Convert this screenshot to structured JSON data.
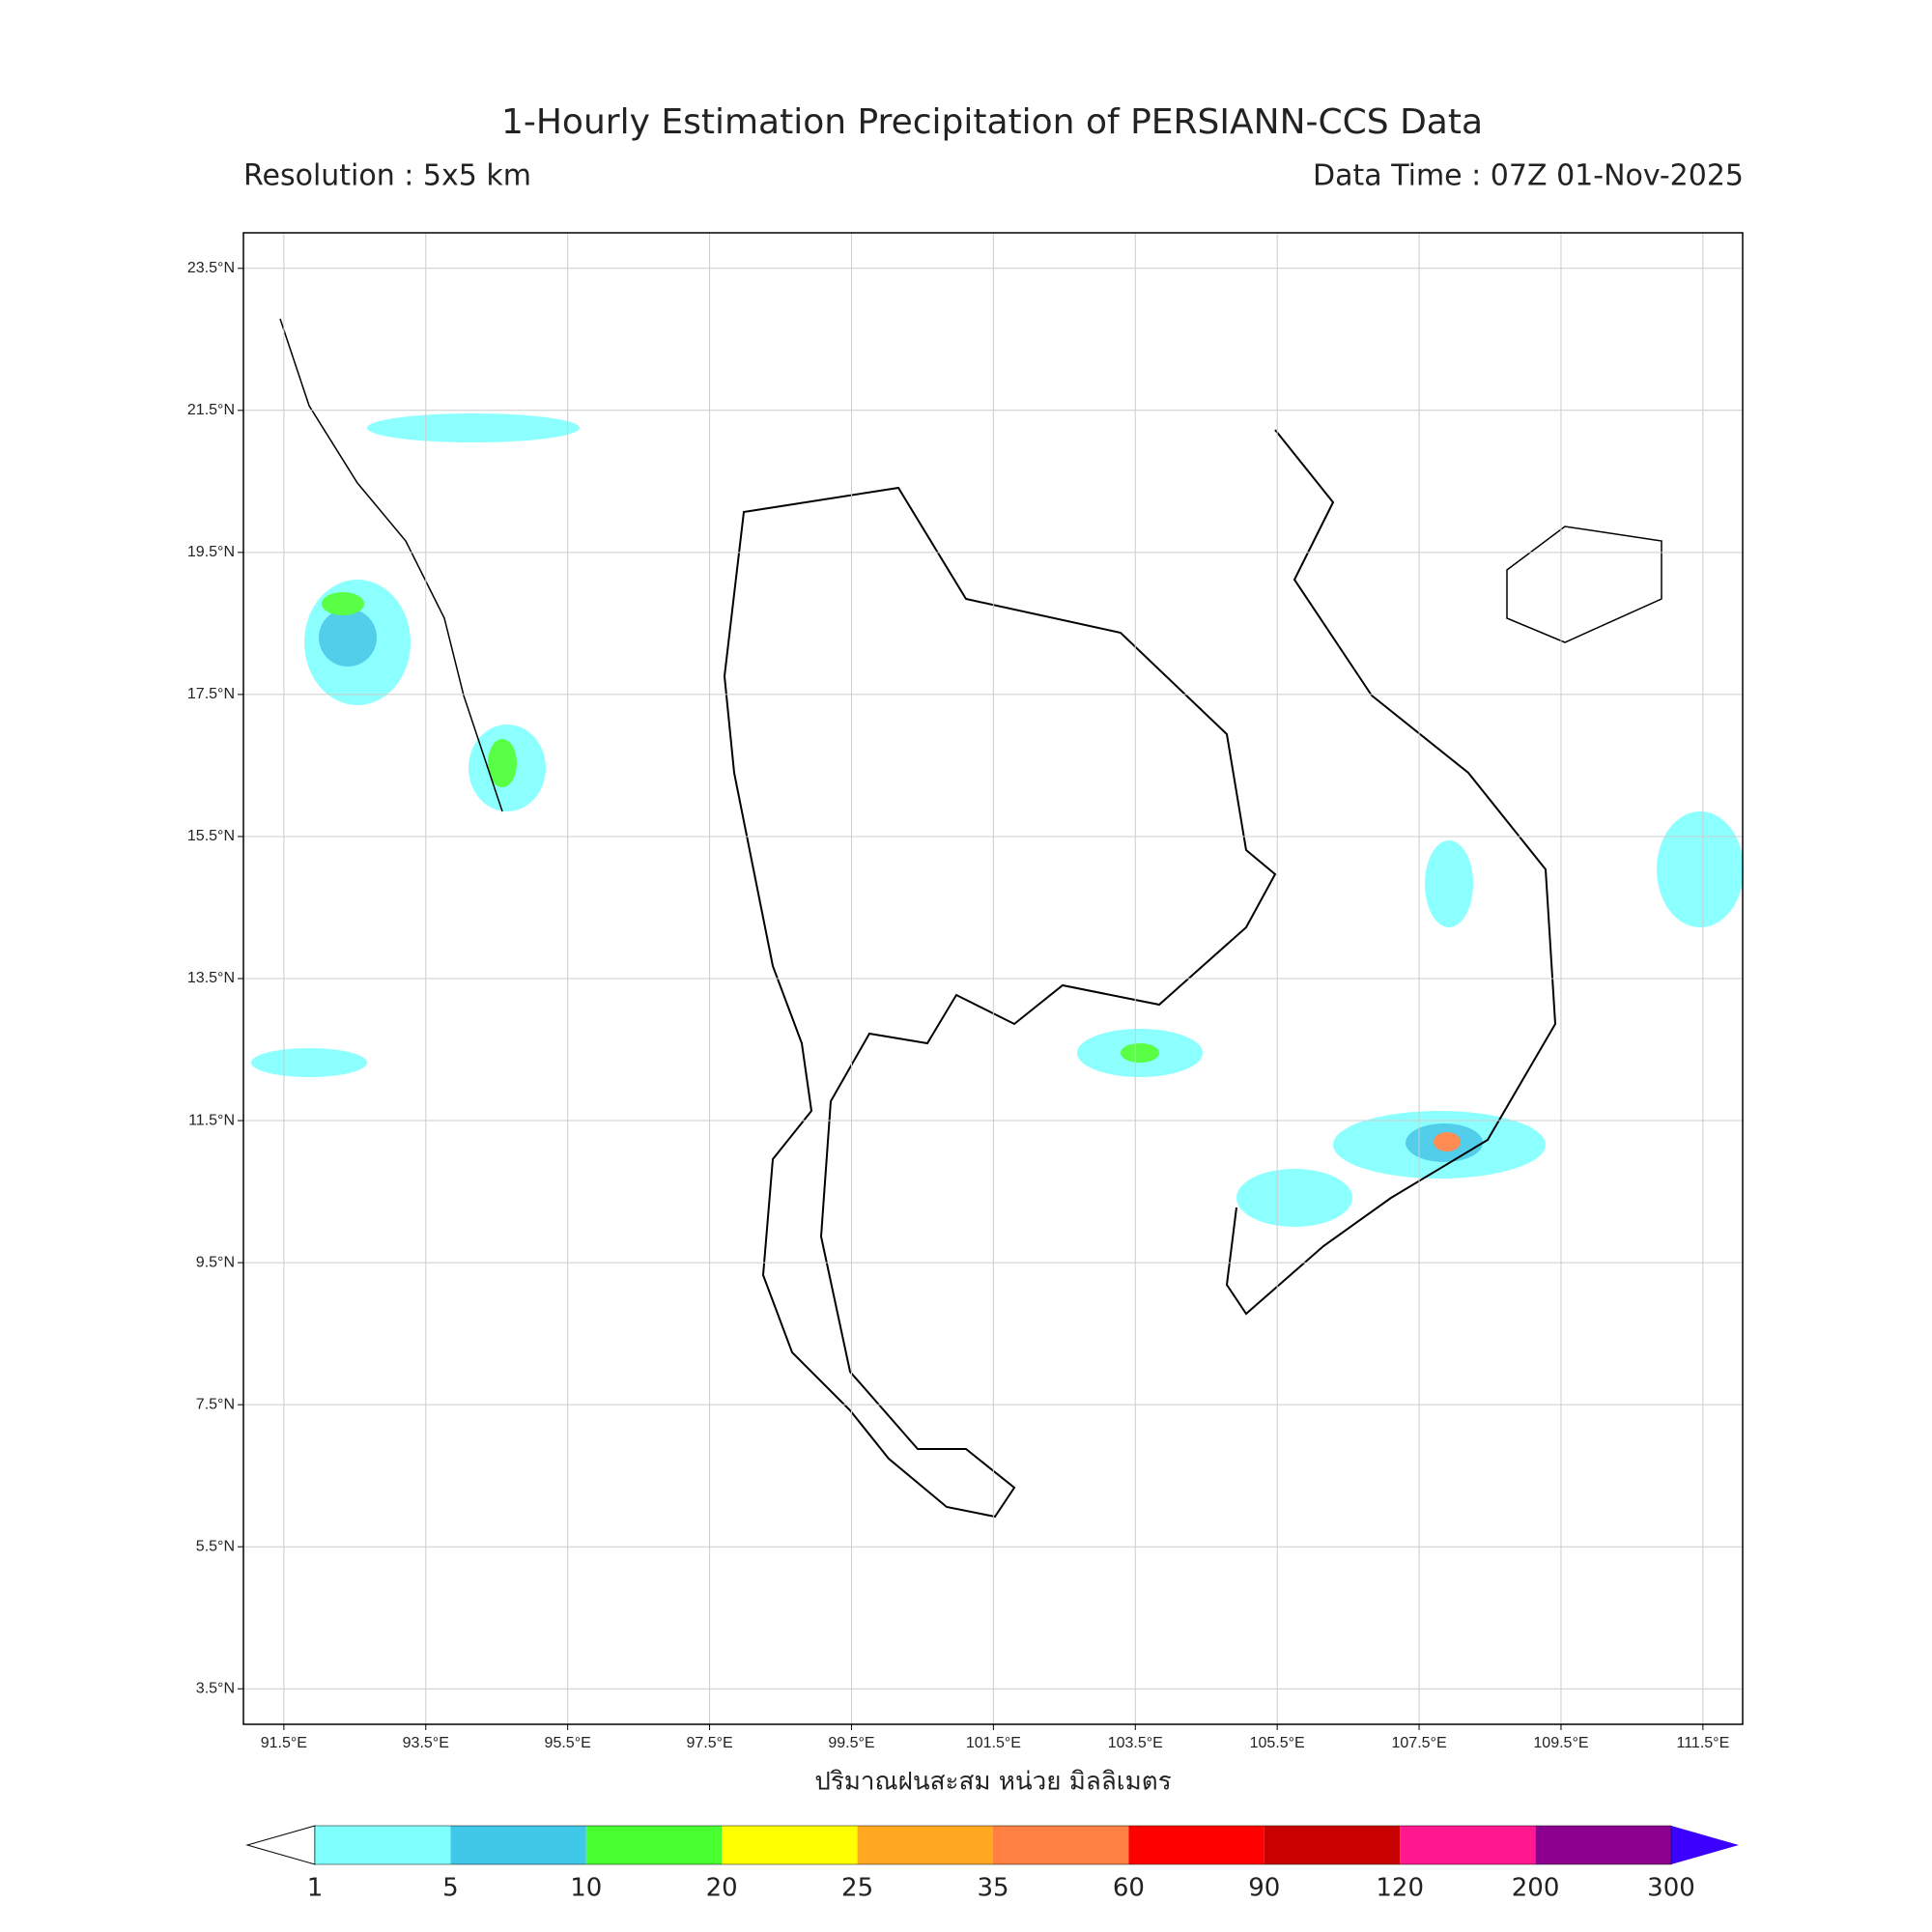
{
  "title": "1-Hourly Estimation Precipitation of PERSIANN-CCS Data",
  "subtitle_left": "Resolution : 5x5 km",
  "subtitle_right": "Data Time : 07Z 01-Nov-2025",
  "map": {
    "xlim": [
      90.93,
      112.06
    ],
    "ylim": [
      3.0,
      24.0
    ],
    "grid": true,
    "xticks": [
      {
        "value": 91.5,
        "label": "91.5°E"
      },
      {
        "value": 93.5,
        "label": "93.5°E"
      },
      {
        "value": 95.5,
        "label": "95.5°E"
      },
      {
        "value": 97.5,
        "label": "97.5°E"
      },
      {
        "value": 99.5,
        "label": "99.5°E"
      },
      {
        "value": 101.5,
        "label": "101.5°E"
      },
      {
        "value": 103.5,
        "label": "103.5°E"
      },
      {
        "value": 105.5,
        "label": "105.5°E"
      },
      {
        "value": 107.5,
        "label": "107.5°E"
      },
      {
        "value": 109.5,
        "label": "109.5°E"
      },
      {
        "value": 111.5,
        "label": "111.5°E"
      }
    ],
    "yticks": [
      {
        "value": 23.5,
        "label": "23.5°N"
      },
      {
        "value": 21.5,
        "label": "21.5°N"
      },
      {
        "value": 19.5,
        "label": "19.5°N"
      },
      {
        "value": 17.5,
        "label": "17.5°N"
      },
      {
        "value": 15.5,
        "label": "15.5°N"
      },
      {
        "value": 13.5,
        "label": "13.5°N"
      },
      {
        "value": 11.5,
        "label": "11.5°N"
      },
      {
        "value": 9.5,
        "label": "9.5°N"
      },
      {
        "value": 7.5,
        "label": "7.5°N"
      },
      {
        "value": 5.5,
        "label": "5.5°N"
      },
      {
        "value": 3.5,
        "label": "3.5°N"
      }
    ]
  },
  "colorbar": {
    "label": "ปริมาณฝนสะสม หน่วย มิลลิเมตร",
    "bounds": [
      1,
      5,
      10,
      20,
      25,
      35,
      60,
      90,
      120,
      200,
      300
    ],
    "colors": [
      "#80ffff",
      "#40c8e8",
      "#48ff30",
      "#ffff00",
      "#ffa820",
      "#ff8040",
      "#ff0000",
      "#c80000",
      "#ff1890",
      "#8c0090"
    ],
    "under_color": "#ffffff",
    "over_color": "#3c00ff"
  }
}
